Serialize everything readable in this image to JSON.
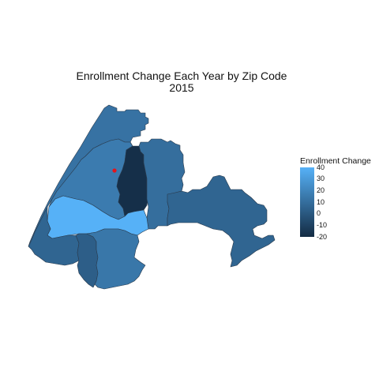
{
  "title_line1": "Enrollment Change Each Year by Zip Code",
  "title_line2": "2015",
  "legend": {
    "title": "Enrollment Change",
    "min": -20,
    "max": 40,
    "ticks": [
      "40",
      "30",
      "20",
      "10",
      "0",
      "-10",
      "-20"
    ],
    "low_color": "#132B43",
    "high_color": "#56B1F7"
  },
  "map": {
    "regions": [
      {
        "id": "north",
        "value": 12
      },
      {
        "id": "north-central",
        "value": 16
      },
      {
        "id": "center-dark",
        "value": -18
      },
      {
        "id": "center-right",
        "value": 10
      },
      {
        "id": "east",
        "value": 6
      },
      {
        "id": "west-bright",
        "value": 40
      },
      {
        "id": "southwest",
        "value": 6
      },
      {
        "id": "south-left",
        "value": 3
      },
      {
        "id": "south-center",
        "value": 14
      }
    ],
    "marker_color": "#E4141B"
  }
}
